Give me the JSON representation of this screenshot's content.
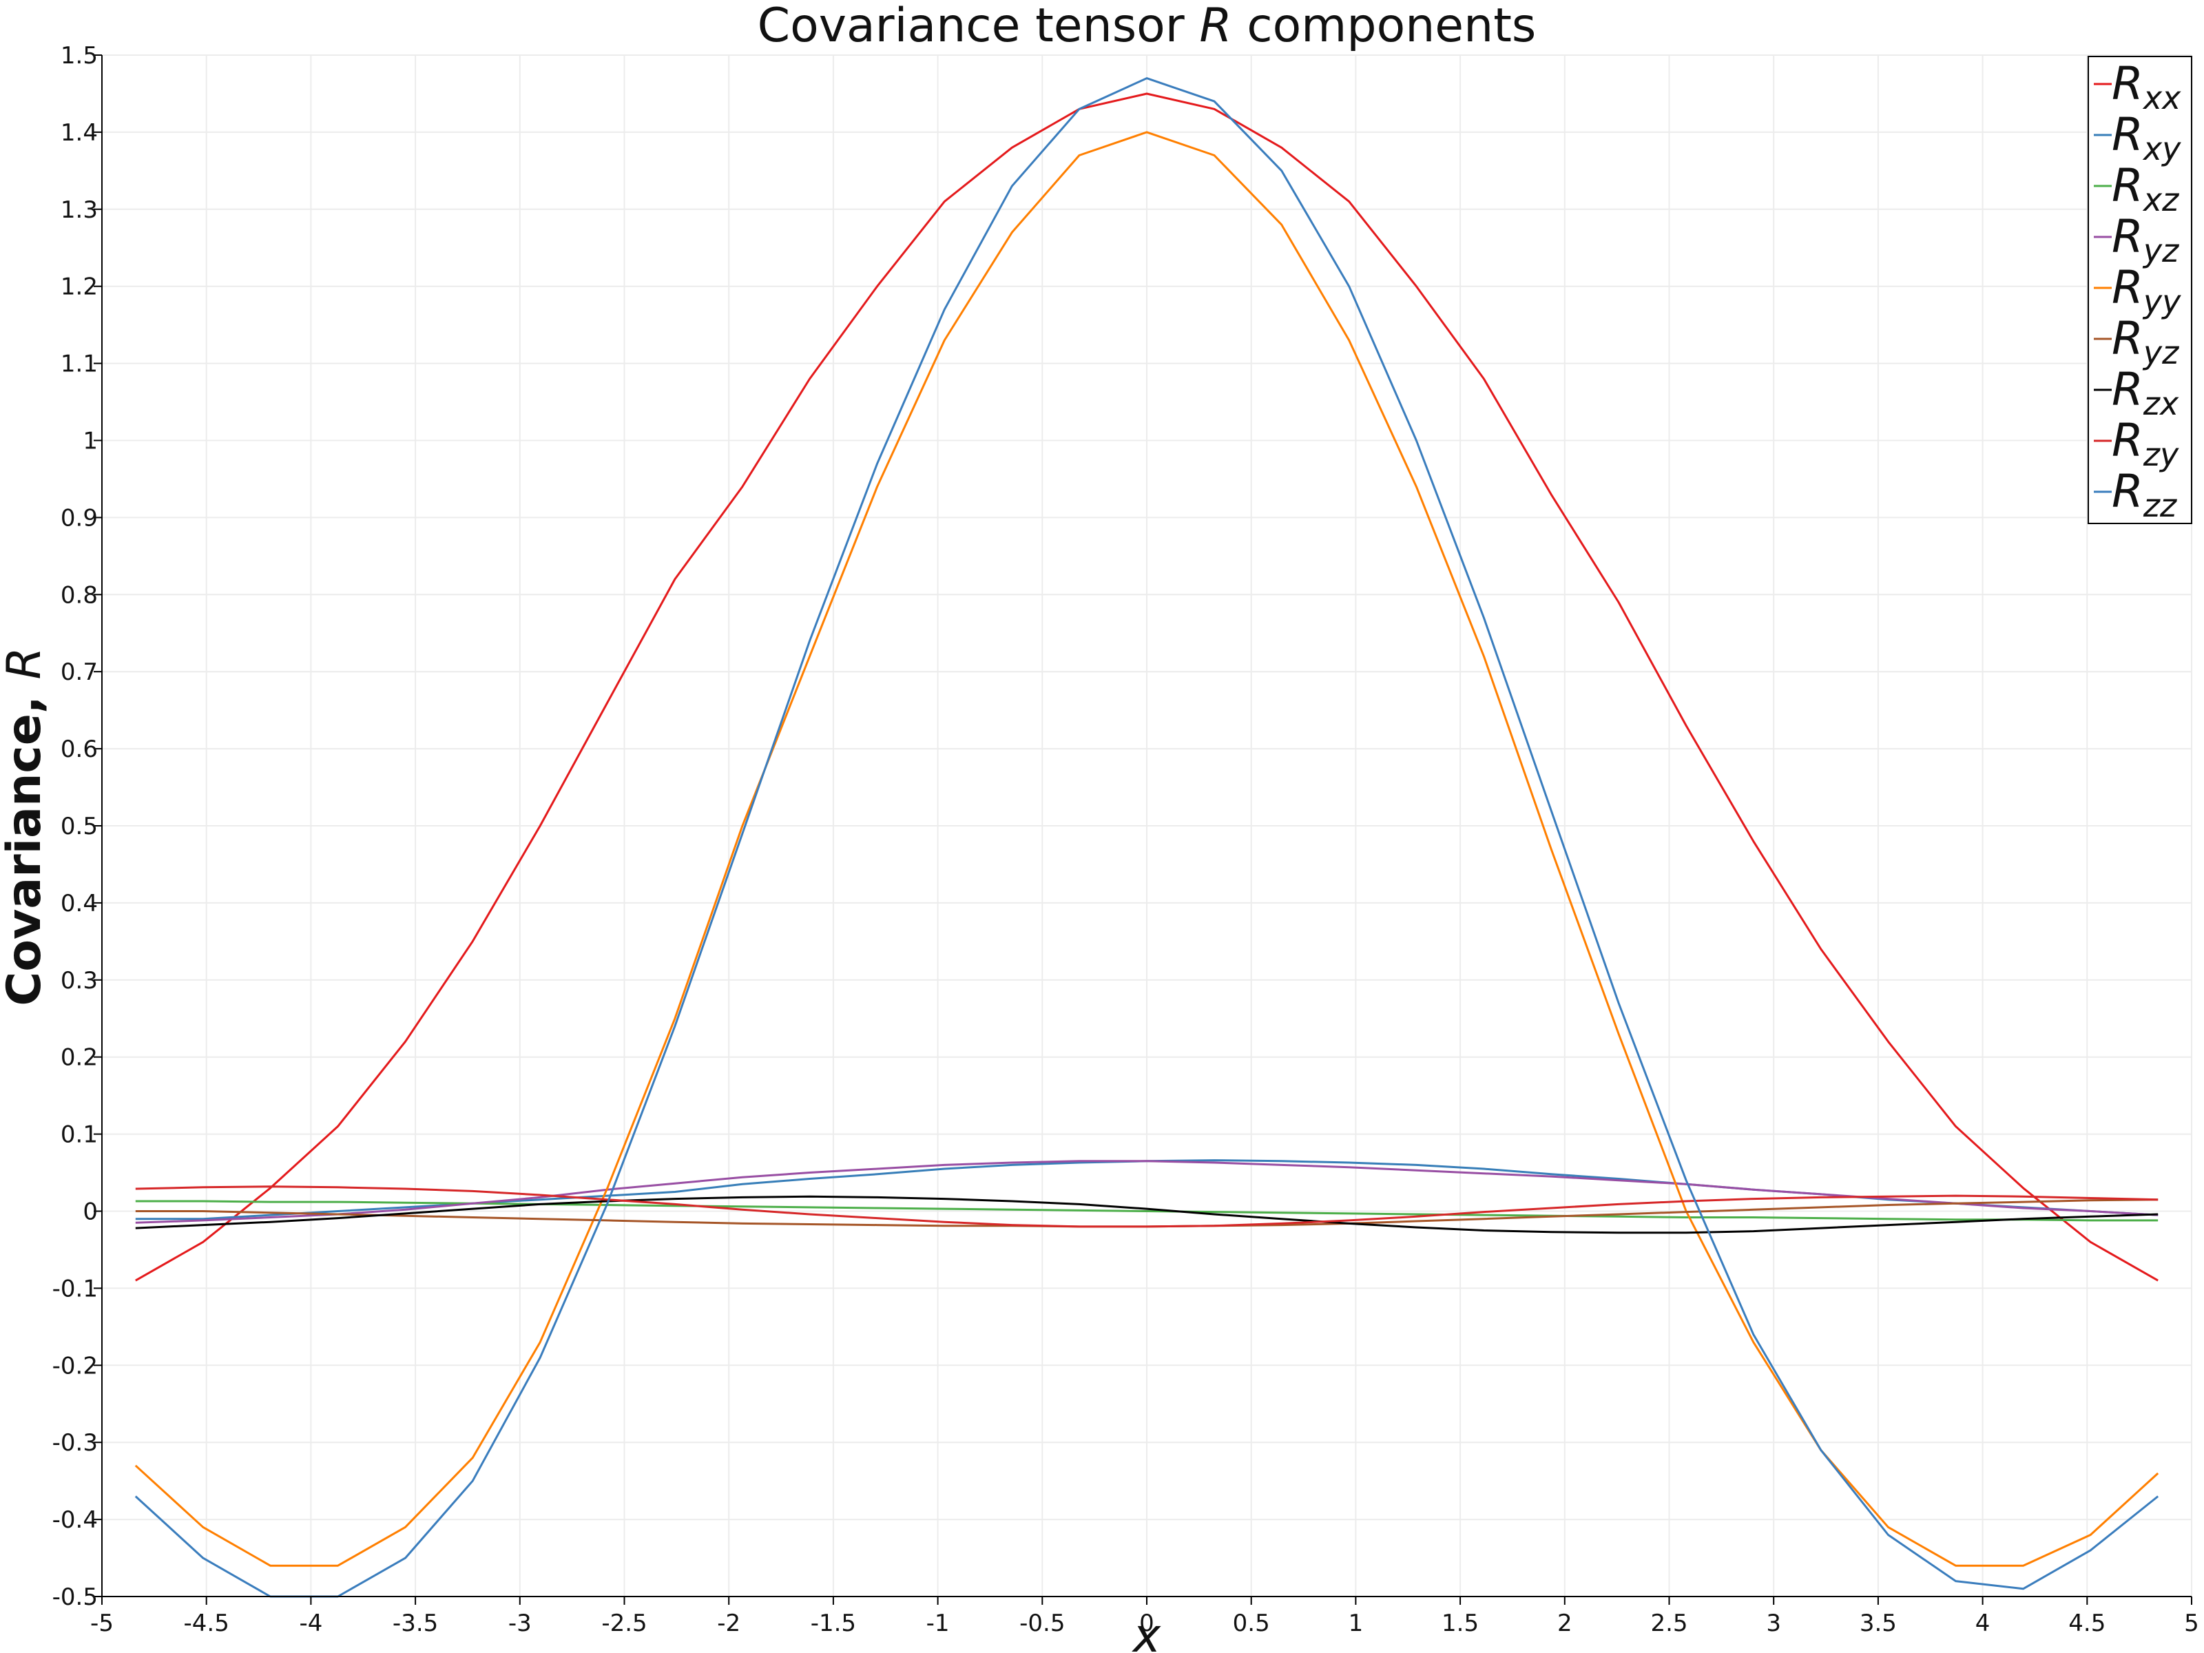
{
  "chart_data": {
    "type": "line",
    "title": "Covariance tensor R components",
    "title_main": "Covariance tensor ",
    "title_var": "R",
    "title_rest": " components",
    "xlabel": "x",
    "ylabel": "Covariance, R",
    "ylabel_main": "Covariance, ",
    "ylabel_var": "R",
    "xlim": [
      -5,
      5
    ],
    "ylim": [
      -0.5,
      1.5
    ],
    "x_ticks": [
      -5,
      -4.5,
      -4,
      -3.5,
      -3,
      -2.5,
      -2,
      -1.5,
      -1,
      -0.5,
      0,
      0.5,
      1,
      1.5,
      2,
      2.5,
      3,
      3.5,
      4,
      4.5,
      5
    ],
    "x_tick_labels": [
      "-5",
      "-4.5",
      "-4",
      "-3.5",
      "-3",
      "-2.5",
      "-2",
      "-1.5",
      "-1",
      "-0.5",
      "0",
      "0.5",
      "1",
      "1.5",
      "2",
      "2.5",
      "3",
      "3.5",
      "4",
      "4.5",
      "5"
    ],
    "y_ticks": [
      -0.5,
      -0.4,
      -0.3,
      -0.2,
      -0.1,
      0,
      0.1,
      0.2,
      0.3,
      0.4,
      0.5,
      0.6,
      0.7,
      0.8,
      0.9,
      1,
      1.1,
      1.2,
      1.3,
      1.4,
      1.5
    ],
    "y_tick_labels": [
      "-0.5",
      "-0.4",
      "-0.3",
      "-0.2",
      "-0.1",
      "0",
      "0.1",
      "0.2",
      "0.3",
      "0.4",
      "0.5",
      "0.6",
      "0.7",
      "0.8",
      "0.9",
      "1",
      "1.1",
      "1.2",
      "1.3",
      "1.4",
      "1.5"
    ],
    "grid": true,
    "legend_position": "top-right",
    "x": [
      -4.839,
      -4.516,
      -4.194,
      -3.871,
      -3.548,
      -3.226,
      -2.903,
      -2.581,
      -2.258,
      -1.935,
      -1.613,
      -1.29,
      -0.968,
      -0.645,
      -0.323,
      0,
      0.323,
      0.645,
      0.968,
      1.29,
      1.613,
      1.935,
      2.258,
      2.581,
      2.903,
      3.226,
      3.548,
      3.871,
      4.194,
      4.516,
      4.839
    ],
    "series": [
      {
        "name": "R_xx",
        "label_main": "R",
        "label_sub": "xx",
        "color": "#e41a1c",
        "values": [
          -0.09,
          -0.04,
          0.03,
          0.11,
          0.22,
          0.35,
          0.5,
          0.66,
          0.82,
          0.94,
          1.08,
          1.2,
          1.31,
          1.38,
          1.43,
          1.45,
          1.43,
          1.38,
          1.31,
          1.2,
          1.08,
          0.93,
          0.79,
          0.63,
          0.48,
          0.34,
          0.22,
          0.11,
          0.03,
          -0.04,
          -0.09
        ]
      },
      {
        "name": "R_xy",
        "label_main": "R",
        "label_sub": "xy",
        "color": "#377eb8",
        "values": [
          -0.01,
          -0.01,
          -0.005,
          0,
          0.005,
          0.01,
          0.015,
          0.02,
          0.025,
          0.035,
          0.042,
          0.048,
          0.055,
          0.06,
          0.063,
          0.065,
          0.066,
          0.065,
          0.063,
          0.06,
          0.055,
          0.048,
          0.042,
          0.035,
          0.028,
          0.022,
          0.015,
          0.01,
          0.005,
          0,
          -0.005
        ]
      },
      {
        "name": "R_xz",
        "label_main": "R",
        "label_sub": "xz",
        "color": "#4daf4a",
        "values": [
          0.013,
          0.013,
          0.012,
          0.012,
          0.011,
          0.01,
          0.009,
          0.008,
          0.007,
          0.006,
          0.005,
          0.004,
          0.003,
          0.002,
          0.001,
          0,
          -0.001,
          -0.002,
          -0.003,
          -0.004,
          -0.005,
          -0.006,
          -0.007,
          -0.008,
          -0.008,
          -0.009,
          -0.01,
          -0.011,
          -0.011,
          -0.012,
          -0.012
        ]
      },
      {
        "name": "R_yz",
        "label_main": "R",
        "label_sub": "yz",
        "color": "#984ea3",
        "values": [
          -0.015,
          -0.012,
          -0.008,
          -0.004,
          0.002,
          0.01,
          0.018,
          0.028,
          0.036,
          0.044,
          0.05,
          0.055,
          0.06,
          0.063,
          0.065,
          0.065,
          0.063,
          0.06,
          0.057,
          0.053,
          0.049,
          0.045,
          0.04,
          0.035,
          0.028,
          0.022,
          0.016,
          0.01,
          0.004,
          0,
          -0.005
        ]
      },
      {
        "name": "R_yy",
        "label_main": "R",
        "label_sub": "yy",
        "color": "#ff7f00",
        "values": [
          -0.33,
          -0.41,
          -0.46,
          -0.46,
          -0.41,
          -0.32,
          -0.17,
          0.03,
          0.25,
          0.5,
          0.72,
          0.94,
          1.13,
          1.27,
          1.37,
          1.4,
          1.37,
          1.28,
          1.13,
          0.94,
          0.72,
          0.47,
          0.23,
          0,
          -0.17,
          -0.31,
          -0.41,
          -0.46,
          -0.46,
          -0.42,
          -0.34
        ]
      },
      {
        "name": "R_yz",
        "label_main": "R",
        "label_sub": "yz",
        "color": "#a65628",
        "values": [
          0,
          0,
          -0.002,
          -0.004,
          -0.006,
          -0.008,
          -0.01,
          -0.012,
          -0.014,
          -0.016,
          -0.017,
          -0.018,
          -0.019,
          -0.019,
          -0.02,
          -0.02,
          -0.019,
          -0.018,
          -0.016,
          -0.013,
          -0.01,
          -0.007,
          -0.004,
          -0.001,
          0.002,
          0.005,
          0.008,
          0.01,
          0.012,
          0.014,
          0.015
        ]
      },
      {
        "name": "R_zx",
        "label_main": "R",
        "label_sub": "zx",
        "color": "#000000",
        "values": [
          -0.022,
          -0.018,
          -0.014,
          -0.009,
          -0.003,
          0.003,
          0.009,
          0.013,
          0.016,
          0.018,
          0.019,
          0.018,
          0.016,
          0.013,
          0.009,
          0.003,
          -0.004,
          -0.01,
          -0.016,
          -0.021,
          -0.025,
          -0.027,
          -0.028,
          -0.028,
          -0.026,
          -0.022,
          -0.018,
          -0.014,
          -0.01,
          -0.007,
          -0.004
        ]
      },
      {
        "name": "R_zy",
        "label_main": "R",
        "label_sub": "zy",
        "color": "#d62728",
        "values": [
          0.029,
          0.031,
          0.032,
          0.031,
          0.029,
          0.026,
          0.021,
          0.015,
          0.009,
          0.002,
          -0.004,
          -0.009,
          -0.014,
          -0.018,
          -0.02,
          -0.02,
          -0.019,
          -0.016,
          -0.012,
          -0.007,
          -0.001,
          0.004,
          0.009,
          0.013,
          0.016,
          0.018,
          0.019,
          0.02,
          0.019,
          0.017,
          0.015
        ]
      },
      {
        "name": "R_zz",
        "label_main": "R",
        "label_sub": "zz",
        "color": "#3a7dbd",
        "values": [
          -0.37,
          -0.45,
          -0.5,
          -0.5,
          -0.45,
          -0.35,
          -0.19,
          0.01,
          0.24,
          0.49,
          0.74,
          0.97,
          1.17,
          1.33,
          1.43,
          1.47,
          1.44,
          1.35,
          1.2,
          1,
          0.77,
          0.52,
          0.27,
          0.04,
          -0.16,
          -0.31,
          -0.42,
          -0.48,
          -0.49,
          -0.44,
          -0.37
        ]
      }
    ]
  }
}
